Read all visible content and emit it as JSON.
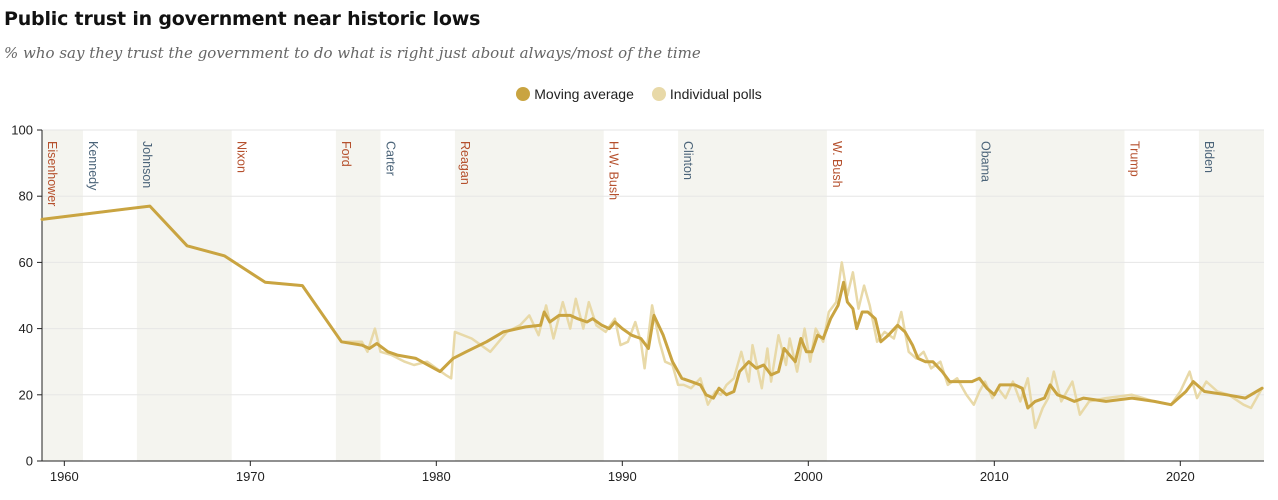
{
  "title": "Public trust in government near historic lows",
  "subtitle": "% who say they trust the government to do what is right just about always/most of the time",
  "legend": [
    {
      "label": "Moving average",
      "color": "#c9a441"
    },
    {
      "label": "Individual polls",
      "color": "#e8d9a8"
    }
  ],
  "colors": {
    "republican": "#b5502d",
    "democrat": "#4b6479",
    "shade": "#f4f4ef",
    "average": "#c9a441",
    "polls": "#e8d9a8"
  },
  "chart_data": {
    "type": "line",
    "title": "Public trust in government near historic lows",
    "subtitle": "% who say they trust the government to do what is right just about always/most of the time",
    "xlim": [
      1958.8,
      2024.5
    ],
    "ylim": [
      0,
      100
    ],
    "x_ticks": [
      1960,
      1970,
      1980,
      1990,
      2000,
      2010,
      2020
    ],
    "y_ticks": [
      0,
      20,
      40,
      60,
      80,
      100
    ],
    "grid": true,
    "legend_position": "top-center",
    "presidents": [
      {
        "name": "Eisenhower",
        "start": 1958.8,
        "end": 1961.0,
        "party": "republican",
        "shaded": true
      },
      {
        "name": "Kennedy",
        "start": 1961.0,
        "end": 1963.9,
        "party": "democrat",
        "shaded": false
      },
      {
        "name": "Johnson",
        "start": 1963.9,
        "end": 1969.0,
        "party": "democrat",
        "shaded": true
      },
      {
        "name": "Nixon",
        "start": 1969.0,
        "end": 1974.6,
        "party": "republican",
        "shaded": false
      },
      {
        "name": "Ford",
        "start": 1974.6,
        "end": 1977.0,
        "party": "republican",
        "shaded": true
      },
      {
        "name": "Carter",
        "start": 1977.0,
        "end": 1981.0,
        "party": "democrat",
        "shaded": false
      },
      {
        "name": "Reagan",
        "start": 1981.0,
        "end": 1989.0,
        "party": "republican",
        "shaded": true
      },
      {
        "name": "H.W. Bush",
        "start": 1989.0,
        "end": 1993.0,
        "party": "republican",
        "shaded": false
      },
      {
        "name": "Clinton",
        "start": 1993.0,
        "end": 2001.0,
        "party": "democrat",
        "shaded": true
      },
      {
        "name": "W. Bush",
        "start": 2001.0,
        "end": 2009.0,
        "party": "republican",
        "shaded": false
      },
      {
        "name": "Obama",
        "start": 2009.0,
        "end": 2017.0,
        "party": "democrat",
        "shaded": true
      },
      {
        "name": "Trump",
        "start": 2017.0,
        "end": 2021.0,
        "party": "republican",
        "shaded": false
      },
      {
        "name": "Biden",
        "start": 2021.0,
        "end": 2024.5,
        "party": "democrat",
        "shaded": true
      }
    ],
    "series": [
      {
        "name": "Moving average",
        "points": [
          [
            1958.8,
            73
          ],
          [
            1964.6,
            77
          ],
          [
            1966.6,
            65
          ],
          [
            1968.6,
            62
          ],
          [
            1970.8,
            54
          ],
          [
            1972.8,
            53
          ],
          [
            1974.9,
            36
          ],
          [
            1976.0,
            35
          ],
          [
            1976.4,
            34
          ],
          [
            1976.8,
            35.5
          ],
          [
            1977.4,
            33
          ],
          [
            1977.9,
            32
          ],
          [
            1978.9,
            31
          ],
          [
            1980.2,
            27
          ],
          [
            1980.9,
            31
          ],
          [
            1981.6,
            33
          ],
          [
            1982.7,
            36
          ],
          [
            1983.6,
            39
          ],
          [
            1984.8,
            40.5
          ],
          [
            1985.6,
            41
          ],
          [
            1985.8,
            45
          ],
          [
            1986.1,
            42
          ],
          [
            1986.6,
            44
          ],
          [
            1987.2,
            44
          ],
          [
            1987.6,
            43
          ],
          [
            1988.1,
            42
          ],
          [
            1988.4,
            43
          ],
          [
            1988.9,
            41
          ],
          [
            1989.3,
            40
          ],
          [
            1989.6,
            42
          ],
          [
            1990.0,
            40
          ],
          [
            1990.5,
            38
          ],
          [
            1991.0,
            37
          ],
          [
            1991.4,
            34
          ],
          [
            1991.7,
            44
          ],
          [
            1992.2,
            38
          ],
          [
            1992.7,
            30
          ],
          [
            1993.2,
            25
          ],
          [
            1993.7,
            24
          ],
          [
            1994.2,
            23
          ],
          [
            1994.5,
            20
          ],
          [
            1994.9,
            19
          ],
          [
            1995.2,
            22
          ],
          [
            1995.6,
            20
          ],
          [
            1996.0,
            21
          ],
          [
            1996.3,
            27
          ],
          [
            1996.8,
            30
          ],
          [
            1997.2,
            28
          ],
          [
            1997.6,
            29
          ],
          [
            1998.0,
            26
          ],
          [
            1998.4,
            27
          ],
          [
            1998.7,
            34
          ],
          [
            1999.0,
            32
          ],
          [
            1999.3,
            30
          ],
          [
            1999.6,
            37
          ],
          [
            1999.9,
            33
          ],
          [
            2000.2,
            33
          ],
          [
            2000.5,
            38
          ],
          [
            2000.8,
            37
          ],
          [
            2001.2,
            43
          ],
          [
            2001.6,
            47
          ],
          [
            2001.9,
            54
          ],
          [
            2002.1,
            48
          ],
          [
            2002.4,
            46
          ],
          [
            2002.6,
            40
          ],
          [
            2002.9,
            45
          ],
          [
            2003.2,
            45
          ],
          [
            2003.6,
            43
          ],
          [
            2003.9,
            36
          ],
          [
            2004.3,
            38
          ],
          [
            2004.8,
            41
          ],
          [
            2005.2,
            39
          ],
          [
            2005.6,
            35
          ],
          [
            2005.9,
            31
          ],
          [
            2006.3,
            30
          ],
          [
            2006.7,
            30
          ],
          [
            2007.2,
            27
          ],
          [
            2007.6,
            24
          ],
          [
            2008.2,
            24
          ],
          [
            2008.8,
            24
          ],
          [
            2009.2,
            25
          ],
          [
            2009.6,
            22
          ],
          [
            2010.0,
            20
          ],
          [
            2010.3,
            23
          ],
          [
            2010.7,
            23
          ],
          [
            2011.1,
            23
          ],
          [
            2011.5,
            22
          ],
          [
            2011.8,
            16
          ],
          [
            2012.2,
            18
          ],
          [
            2012.7,
            19
          ],
          [
            2013.0,
            23
          ],
          [
            2013.4,
            20
          ],
          [
            2013.9,
            19
          ],
          [
            2014.3,
            18
          ],
          [
            2014.8,
            19
          ],
          [
            2016.0,
            18
          ],
          [
            2017.4,
            19
          ],
          [
            2018.6,
            18
          ],
          [
            2019.5,
            17
          ],
          [
            2020.3,
            21
          ],
          [
            2020.7,
            24
          ],
          [
            2021.3,
            21
          ],
          [
            2022.5,
            20
          ],
          [
            2023.5,
            19
          ],
          [
            2024.4,
            22
          ]
        ]
      },
      {
        "name": "Individual polls",
        "points": [
          [
            1958.8,
            73
          ],
          [
            1964.6,
            77
          ],
          [
            1966.6,
            65
          ],
          [
            1968.6,
            62
          ],
          [
            1970.8,
            54
          ],
          [
            1972.8,
            53
          ],
          [
            1974.9,
            36
          ],
          [
            1976.0,
            36
          ],
          [
            1976.3,
            33
          ],
          [
            1976.7,
            40
          ],
          [
            1977.0,
            33
          ],
          [
            1977.6,
            32
          ],
          [
            1978.3,
            30
          ],
          [
            1978.8,
            29
          ],
          [
            1979.5,
            30
          ],
          [
            1980.0,
            28
          ],
          [
            1980.5,
            26
          ],
          [
            1980.8,
            25
          ],
          [
            1981.0,
            39
          ],
          [
            1981.9,
            37
          ],
          [
            1982.9,
            33
          ],
          [
            1983.8,
            39
          ],
          [
            1984.5,
            41
          ],
          [
            1985.0,
            44
          ],
          [
            1985.5,
            38
          ],
          [
            1985.9,
            47
          ],
          [
            1986.3,
            37
          ],
          [
            1986.8,
            48
          ],
          [
            1987.2,
            40
          ],
          [
            1987.5,
            49
          ],
          [
            1987.9,
            40
          ],
          [
            1988.2,
            48
          ],
          [
            1988.6,
            41
          ],
          [
            1989.1,
            39
          ],
          [
            1989.6,
            43
          ],
          [
            1989.9,
            35
          ],
          [
            1990.3,
            36
          ],
          [
            1990.7,
            42
          ],
          [
            1991.0,
            36
          ],
          [
            1991.2,
            28
          ],
          [
            1991.6,
            47
          ],
          [
            1992.0,
            36
          ],
          [
            1992.3,
            30
          ],
          [
            1992.7,
            29
          ],
          [
            1993.0,
            23
          ],
          [
            1993.3,
            23
          ],
          [
            1993.7,
            22
          ],
          [
            1994.2,
            25
          ],
          [
            1994.6,
            17
          ],
          [
            1995.0,
            21
          ],
          [
            1995.3,
            20
          ],
          [
            1995.6,
            23
          ],
          [
            1996.0,
            25
          ],
          [
            1996.4,
            33
          ],
          [
            1996.8,
            24
          ],
          [
            1997.0,
            35
          ],
          [
            1997.5,
            22
          ],
          [
            1997.8,
            34
          ],
          [
            1998.0,
            24
          ],
          [
            1998.4,
            38
          ],
          [
            1998.8,
            29
          ],
          [
            1999.0,
            37
          ],
          [
            1999.4,
            27
          ],
          [
            1999.8,
            40
          ],
          [
            2000.1,
            30
          ],
          [
            2000.4,
            40
          ],
          [
            2000.8,
            36
          ],
          [
            2001.1,
            45
          ],
          [
            2001.5,
            48
          ],
          [
            2001.8,
            60
          ],
          [
            2002.1,
            50
          ],
          [
            2002.4,
            57
          ],
          [
            2002.7,
            46
          ],
          [
            2003.0,
            53
          ],
          [
            2003.3,
            47
          ],
          [
            2003.7,
            36
          ],
          [
            2004.1,
            39
          ],
          [
            2004.6,
            37
          ],
          [
            2005.0,
            45
          ],
          [
            2005.4,
            33
          ],
          [
            2005.8,
            31
          ],
          [
            2006.2,
            33
          ],
          [
            2006.6,
            28
          ],
          [
            2007.1,
            30
          ],
          [
            2007.5,
            23
          ],
          [
            2008.0,
            25
          ],
          [
            2008.5,
            20
          ],
          [
            2008.9,
            17
          ],
          [
            2009.2,
            21
          ],
          [
            2009.5,
            24
          ],
          [
            2009.9,
            19
          ],
          [
            2010.2,
            22
          ],
          [
            2010.6,
            19
          ],
          [
            2011.0,
            24
          ],
          [
            2011.4,
            18
          ],
          [
            2011.8,
            25
          ],
          [
            2012.2,
            10
          ],
          [
            2012.6,
            16
          ],
          [
            2012.9,
            19
          ],
          [
            2013.2,
            27
          ],
          [
            2013.6,
            18
          ],
          [
            2013.9,
            21
          ],
          [
            2014.2,
            24
          ],
          [
            2014.6,
            14
          ],
          [
            2015.1,
            18
          ],
          [
            2016.0,
            19
          ],
          [
            2017.4,
            20
          ],
          [
            2018.6,
            18
          ],
          [
            2019.5,
            17
          ],
          [
            2020.0,
            21
          ],
          [
            2020.5,
            27
          ],
          [
            2020.9,
            19
          ],
          [
            2021.4,
            24
          ],
          [
            2022.0,
            21
          ],
          [
            2022.6,
            20
          ],
          [
            2023.4,
            17
          ],
          [
            2023.8,
            16
          ],
          [
            2024.4,
            22
          ]
        ]
      }
    ]
  }
}
